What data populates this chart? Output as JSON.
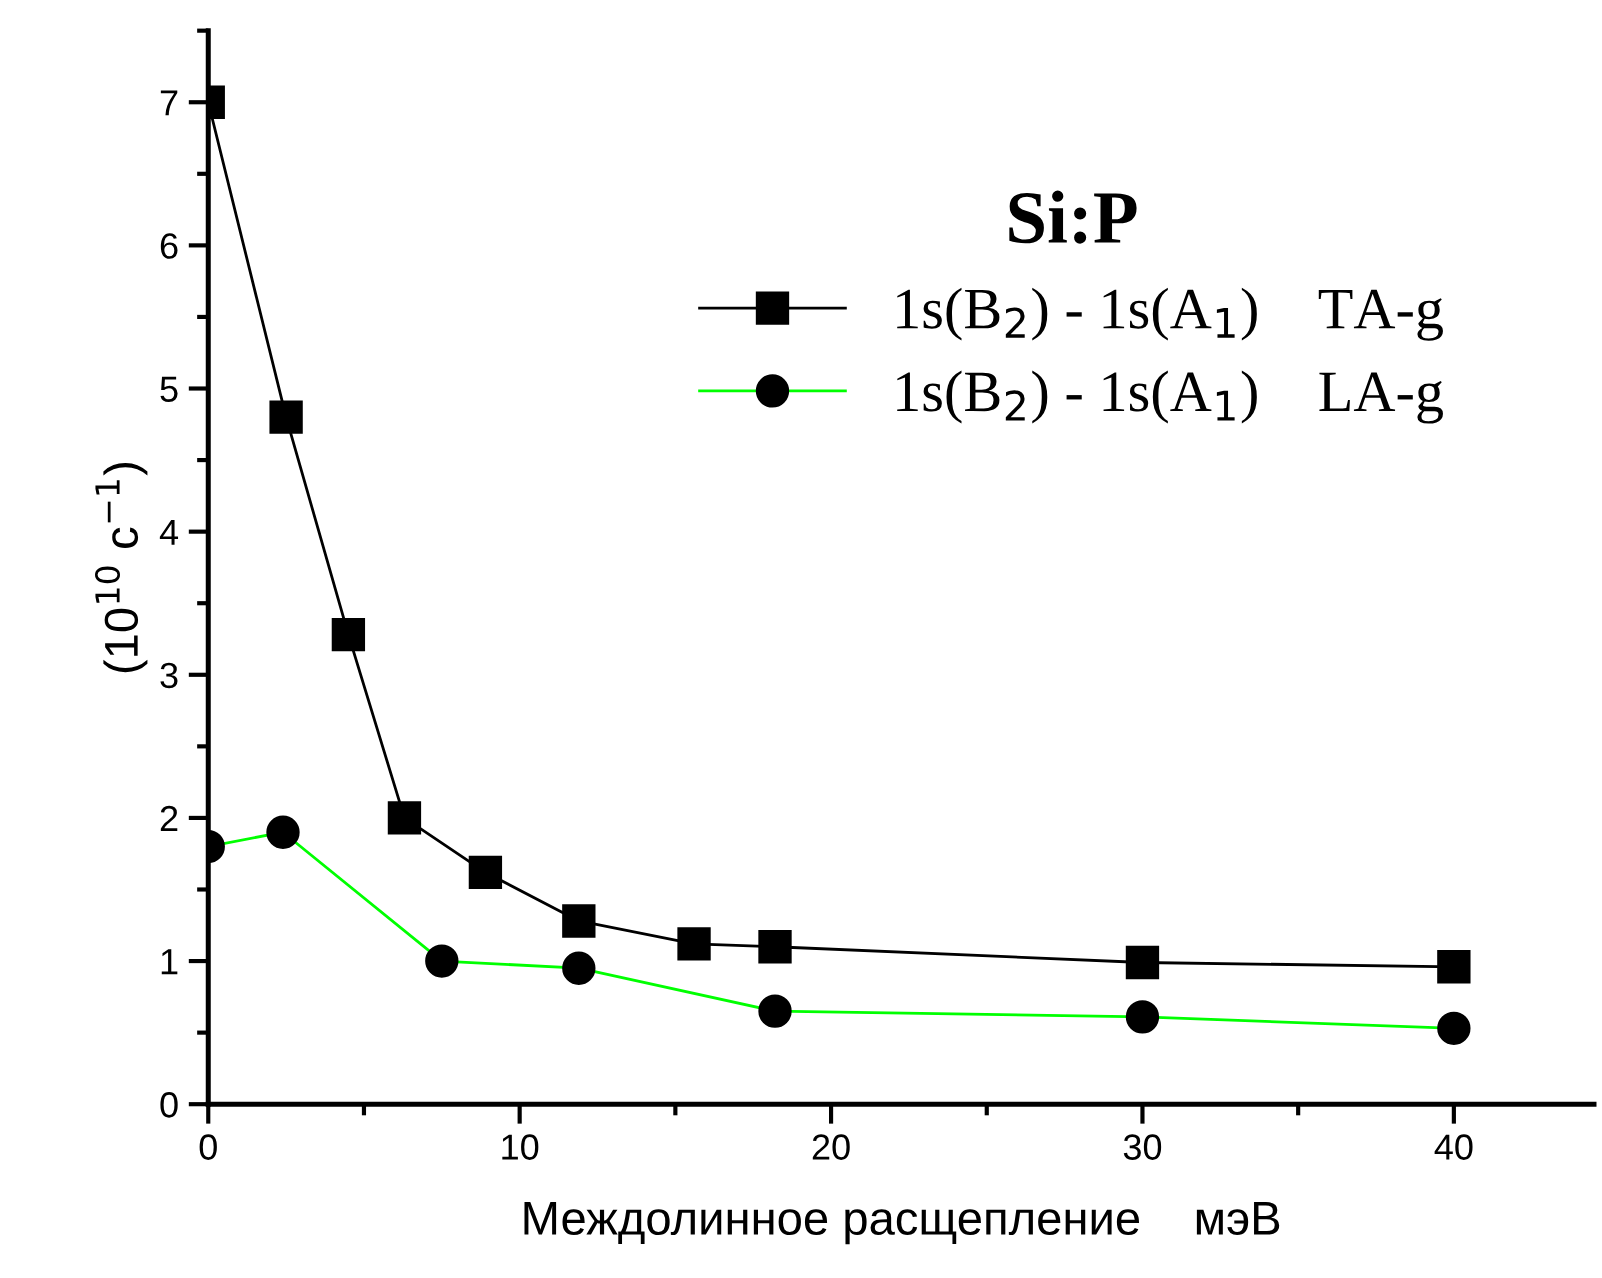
{
  "chart_data": {
    "type": "line",
    "xlabel": "Междолинное расщепление    мэВ",
    "ylabel": "(10$^{10}$ c$^{−1}$)",
    "legend_title": "Si:P",
    "legend": "top right",
    "grid": false,
    "xlim": [
      0,
      44.5
    ],
    "xticks": [
      0,
      10,
      20,
      30,
      40
    ],
    "ylim": [
      0,
      7.5
    ],
    "yticks": [
      0,
      1,
      2,
      3,
      4,
      5,
      6,
      7
    ],
    "series": [
      {
        "name": "1s(B$_{2}$) - 1s(A$_{1}$)    TA-g",
        "color": "#000000",
        "marker": "square",
        "x": [
          0,
          2.5,
          4.5,
          6.3,
          8.9,
          11.9,
          15.6,
          18.2,
          30,
          40
        ],
        "values": [
          7.0,
          4.8,
          3.28,
          2.0,
          1.62,
          1.28,
          1.12,
          1.1,
          0.99,
          0.96
        ]
      },
      {
        "name": "1s(B$_{2}$) - 1s(A$_{1}$)    LA-g",
        "color": "#00ff00",
        "marker": "circle",
        "x": [
          0,
          2.4,
          7.5,
          11.9,
          18.2,
          30,
          40
        ],
        "values": [
          1.8,
          1.9,
          1.0,
          0.95,
          0.65,
          0.61,
          0.53
        ]
      }
    ]
  }
}
